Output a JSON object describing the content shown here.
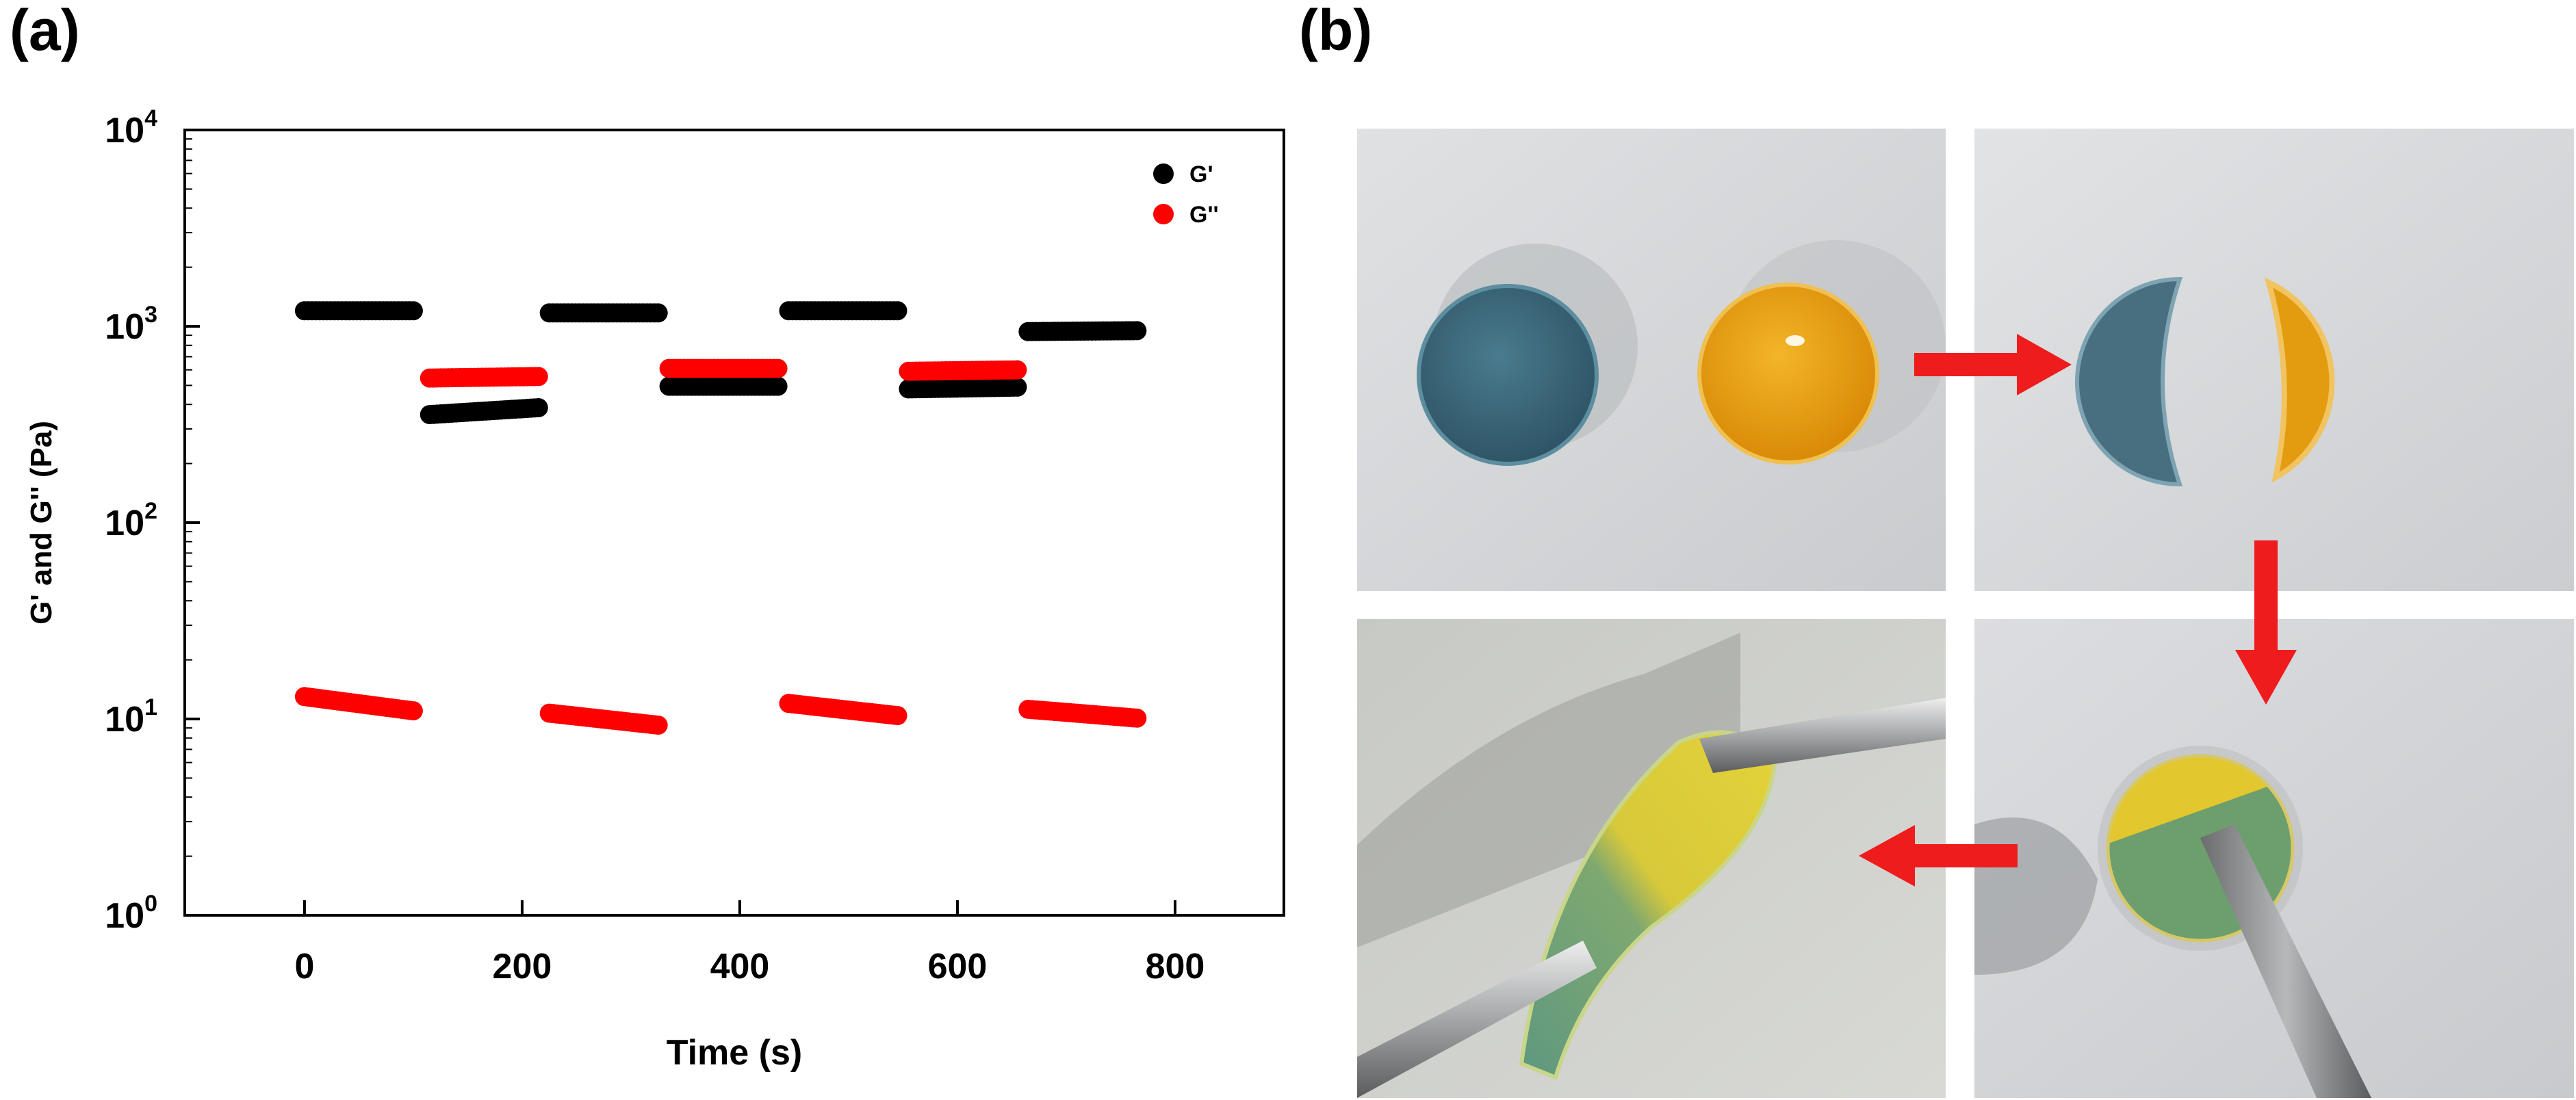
{
  "panels": {
    "a_label": "(a)",
    "b_label": "(b)"
  },
  "chart_data": {
    "type": "scatter",
    "title": "",
    "xlabel": "Time (s)",
    "ylabel": "G' and G'' (Pa)",
    "yscale": "log",
    "xlim": [
      -110,
      900
    ],
    "ylim": [
      1,
      10000
    ],
    "xticks": [
      0,
      200,
      400,
      600,
      800
    ],
    "yticks": [
      {
        "value": 1,
        "base": "10",
        "exp": "0"
      },
      {
        "value": 10,
        "base": "10",
        "exp": "1"
      },
      {
        "value": 100,
        "base": "10",
        "exp": "2"
      },
      {
        "value": 1000,
        "base": "10",
        "exp": "3"
      },
      {
        "value": 10000,
        "base": "10",
        "exp": "4"
      }
    ],
    "grid": false,
    "legend_position": "top-right",
    "series": [
      {
        "name": "G'",
        "color": "#000000",
        "segments": [
          {
            "x_start": 0,
            "x_end": 100,
            "y_start": 1200,
            "y_end": 1200
          },
          {
            "x_start": 115,
            "x_end": 215,
            "y_start": 355,
            "y_end": 385
          },
          {
            "x_start": 225,
            "x_end": 325,
            "y_start": 1170,
            "y_end": 1170
          },
          {
            "x_start": 335,
            "x_end": 435,
            "y_start": 495,
            "y_end": 495
          },
          {
            "x_start": 445,
            "x_end": 545,
            "y_start": 1200,
            "y_end": 1200
          },
          {
            "x_start": 555,
            "x_end": 655,
            "y_start": 480,
            "y_end": 490
          },
          {
            "x_start": 665,
            "x_end": 765,
            "y_start": 940,
            "y_end": 950
          }
        ]
      },
      {
        "name": "G''",
        "color": "#ff0000",
        "segments": [
          {
            "x_start": 0,
            "x_end": 100,
            "y_start": 13,
            "y_end": 11
          },
          {
            "x_start": 115,
            "x_end": 215,
            "y_start": 545,
            "y_end": 555
          },
          {
            "x_start": 225,
            "x_end": 325,
            "y_start": 10.7,
            "y_end": 9.3
          },
          {
            "x_start": 335,
            "x_end": 435,
            "y_start": 610,
            "y_end": 610
          },
          {
            "x_start": 445,
            "x_end": 545,
            "y_start": 12,
            "y_end": 10.4
          },
          {
            "x_start": 555,
            "x_end": 655,
            "y_start": 590,
            "y_end": 600
          },
          {
            "x_start": 665,
            "x_end": 765,
            "y_start": 11.2,
            "y_end": 10.1
          }
        ]
      }
    ]
  },
  "photos": [
    {
      "name": "initial-hydrogels-photo",
      "discs": [
        "blue",
        "orange"
      ]
    },
    {
      "name": "cut-halves-photo",
      "discs": [
        "blue-half",
        "orange-half"
      ]
    },
    {
      "name": "stretched-healed-photo",
      "discs": [
        "stretched"
      ]
    },
    {
      "name": "healed-disc-photo",
      "discs": [
        "healed"
      ]
    }
  ],
  "colors": {
    "blue_gel": "#3b6778",
    "orange_gel": "#e8a314",
    "green_gel": "#6f9d78",
    "yellow_gel": "#e8cf2e",
    "arrow": "#ee1c1c",
    "background_photo": "#d4d6d9"
  },
  "icons": [
    "right-arrow-icon",
    "down-arrow-icon",
    "left-arrow-icon"
  ]
}
